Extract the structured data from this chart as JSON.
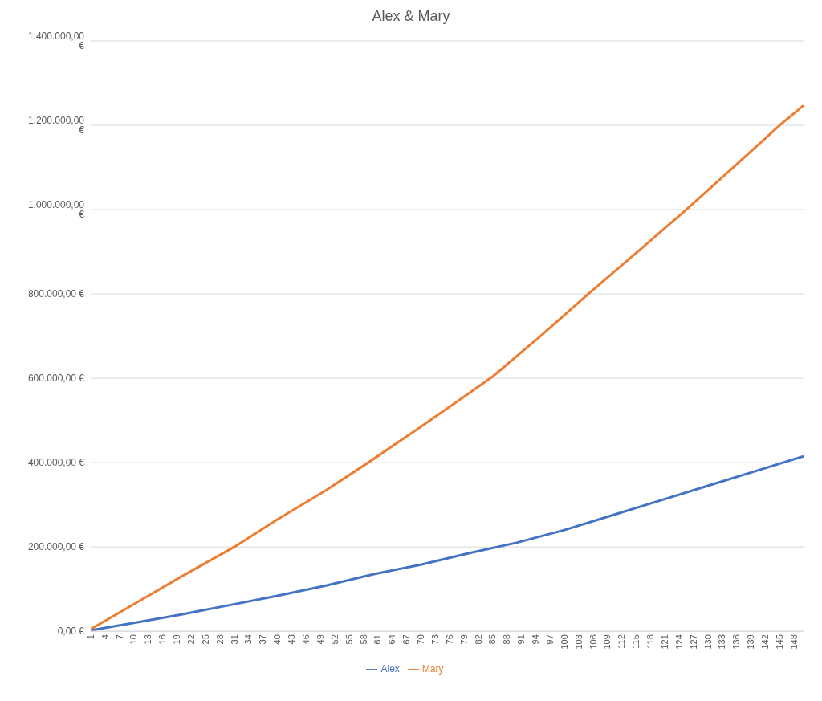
{
  "chart_data": {
    "type": "line",
    "title": "Alex & Mary",
    "xlim": [
      1,
      150
    ],
    "xticks": [
      1,
      4,
      7,
      10,
      13,
      16,
      19,
      22,
      25,
      28,
      31,
      34,
      37,
      40,
      43,
      46,
      49,
      52,
      55,
      58,
      61,
      64,
      67,
      70,
      73,
      76,
      79,
      82,
      85,
      88,
      91,
      94,
      97,
      100,
      103,
      106,
      109,
      112,
      115,
      118,
      121,
      124,
      127,
      130,
      133,
      136,
      139,
      142,
      145,
      148
    ],
    "ylim": [
      0,
      1400000
    ],
    "yticks": [
      {
        "value": 0,
        "label": "0,00 €"
      },
      {
        "value": 200000,
        "label": "200.000,00 €"
      },
      {
        "value": 400000,
        "label": "400.000,00 €"
      },
      {
        "value": 600000,
        "label": "600.000,00 €"
      },
      {
        "value": 800000,
        "label": "800.000,00 €"
      },
      {
        "value": 1000000,
        "label": "1.000.000,00 €"
      },
      {
        "value": 1200000,
        "label": "1.200.000,00 €"
      },
      {
        "value": 1400000,
        "label": "1.400.000,00 €"
      }
    ],
    "grid": "y",
    "legend": "bottom",
    "marker": "none",
    "line_style": "solid",
    "series": [
      {
        "name": "Alex",
        "color": "#4472c4",
        "x": [
          1,
          10,
          20,
          30,
          40,
          50,
          60,
          70,
          80,
          90,
          100,
          110,
          120,
          130,
          140,
          150
        ],
        "values": [
          2000,
          20000,
          40000,
          62000,
          84000,
          108000,
          135000,
          158000,
          185000,
          210000,
          240000,
          275000,
          310000,
          345000,
          380000,
          415000
        ]
      },
      {
        "name": "Mary",
        "color": "#ed7d31",
        "x": [
          1,
          10,
          20,
          31,
          40,
          50,
          59,
          70,
          80,
          85,
          95,
          105,
          115,
          125,
          135,
          145,
          150
        ],
        "values": [
          5000,
          64000,
          130000,
          200000,
          265000,
          333000,
          400000,
          485000,
          564000,
          604000,
          700000,
          800000,
          897000,
          995000,
          1097000,
          1200000,
          1247000
        ]
      }
    ]
  }
}
